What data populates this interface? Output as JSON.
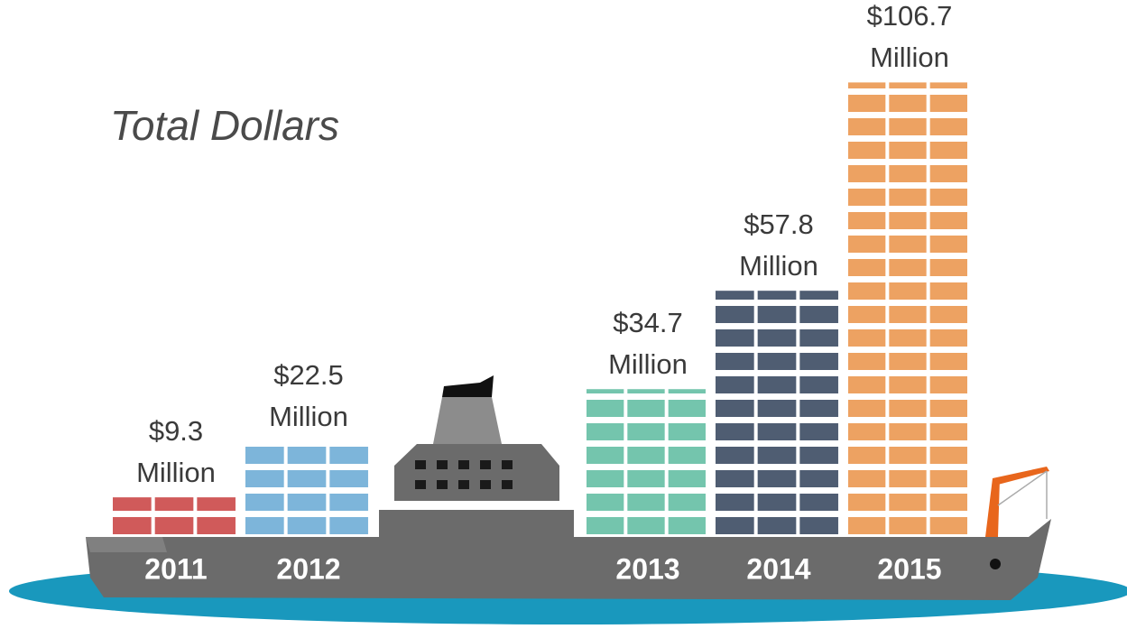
{
  "chart_data": {
    "type": "bar",
    "title": "Total Dollars",
    "categories": [
      "2011",
      "2012",
      "2013",
      "2014",
      "2015"
    ],
    "series": [
      {
        "name": null,
        "values": [
          9.3,
          22.5,
          34.7,
          57.8,
          106.7
        ],
        "value_labels": [
          "$9.3 Million",
          "$22.5 Million",
          "$34.7 Million",
          "$57.8 Million",
          "$106.7 Million"
        ],
        "colors": [
          "#d05a5a",
          "#7db5da",
          "#74c5ad",
          "#4f5d72",
          "#eda262"
        ]
      }
    ]
  }
}
